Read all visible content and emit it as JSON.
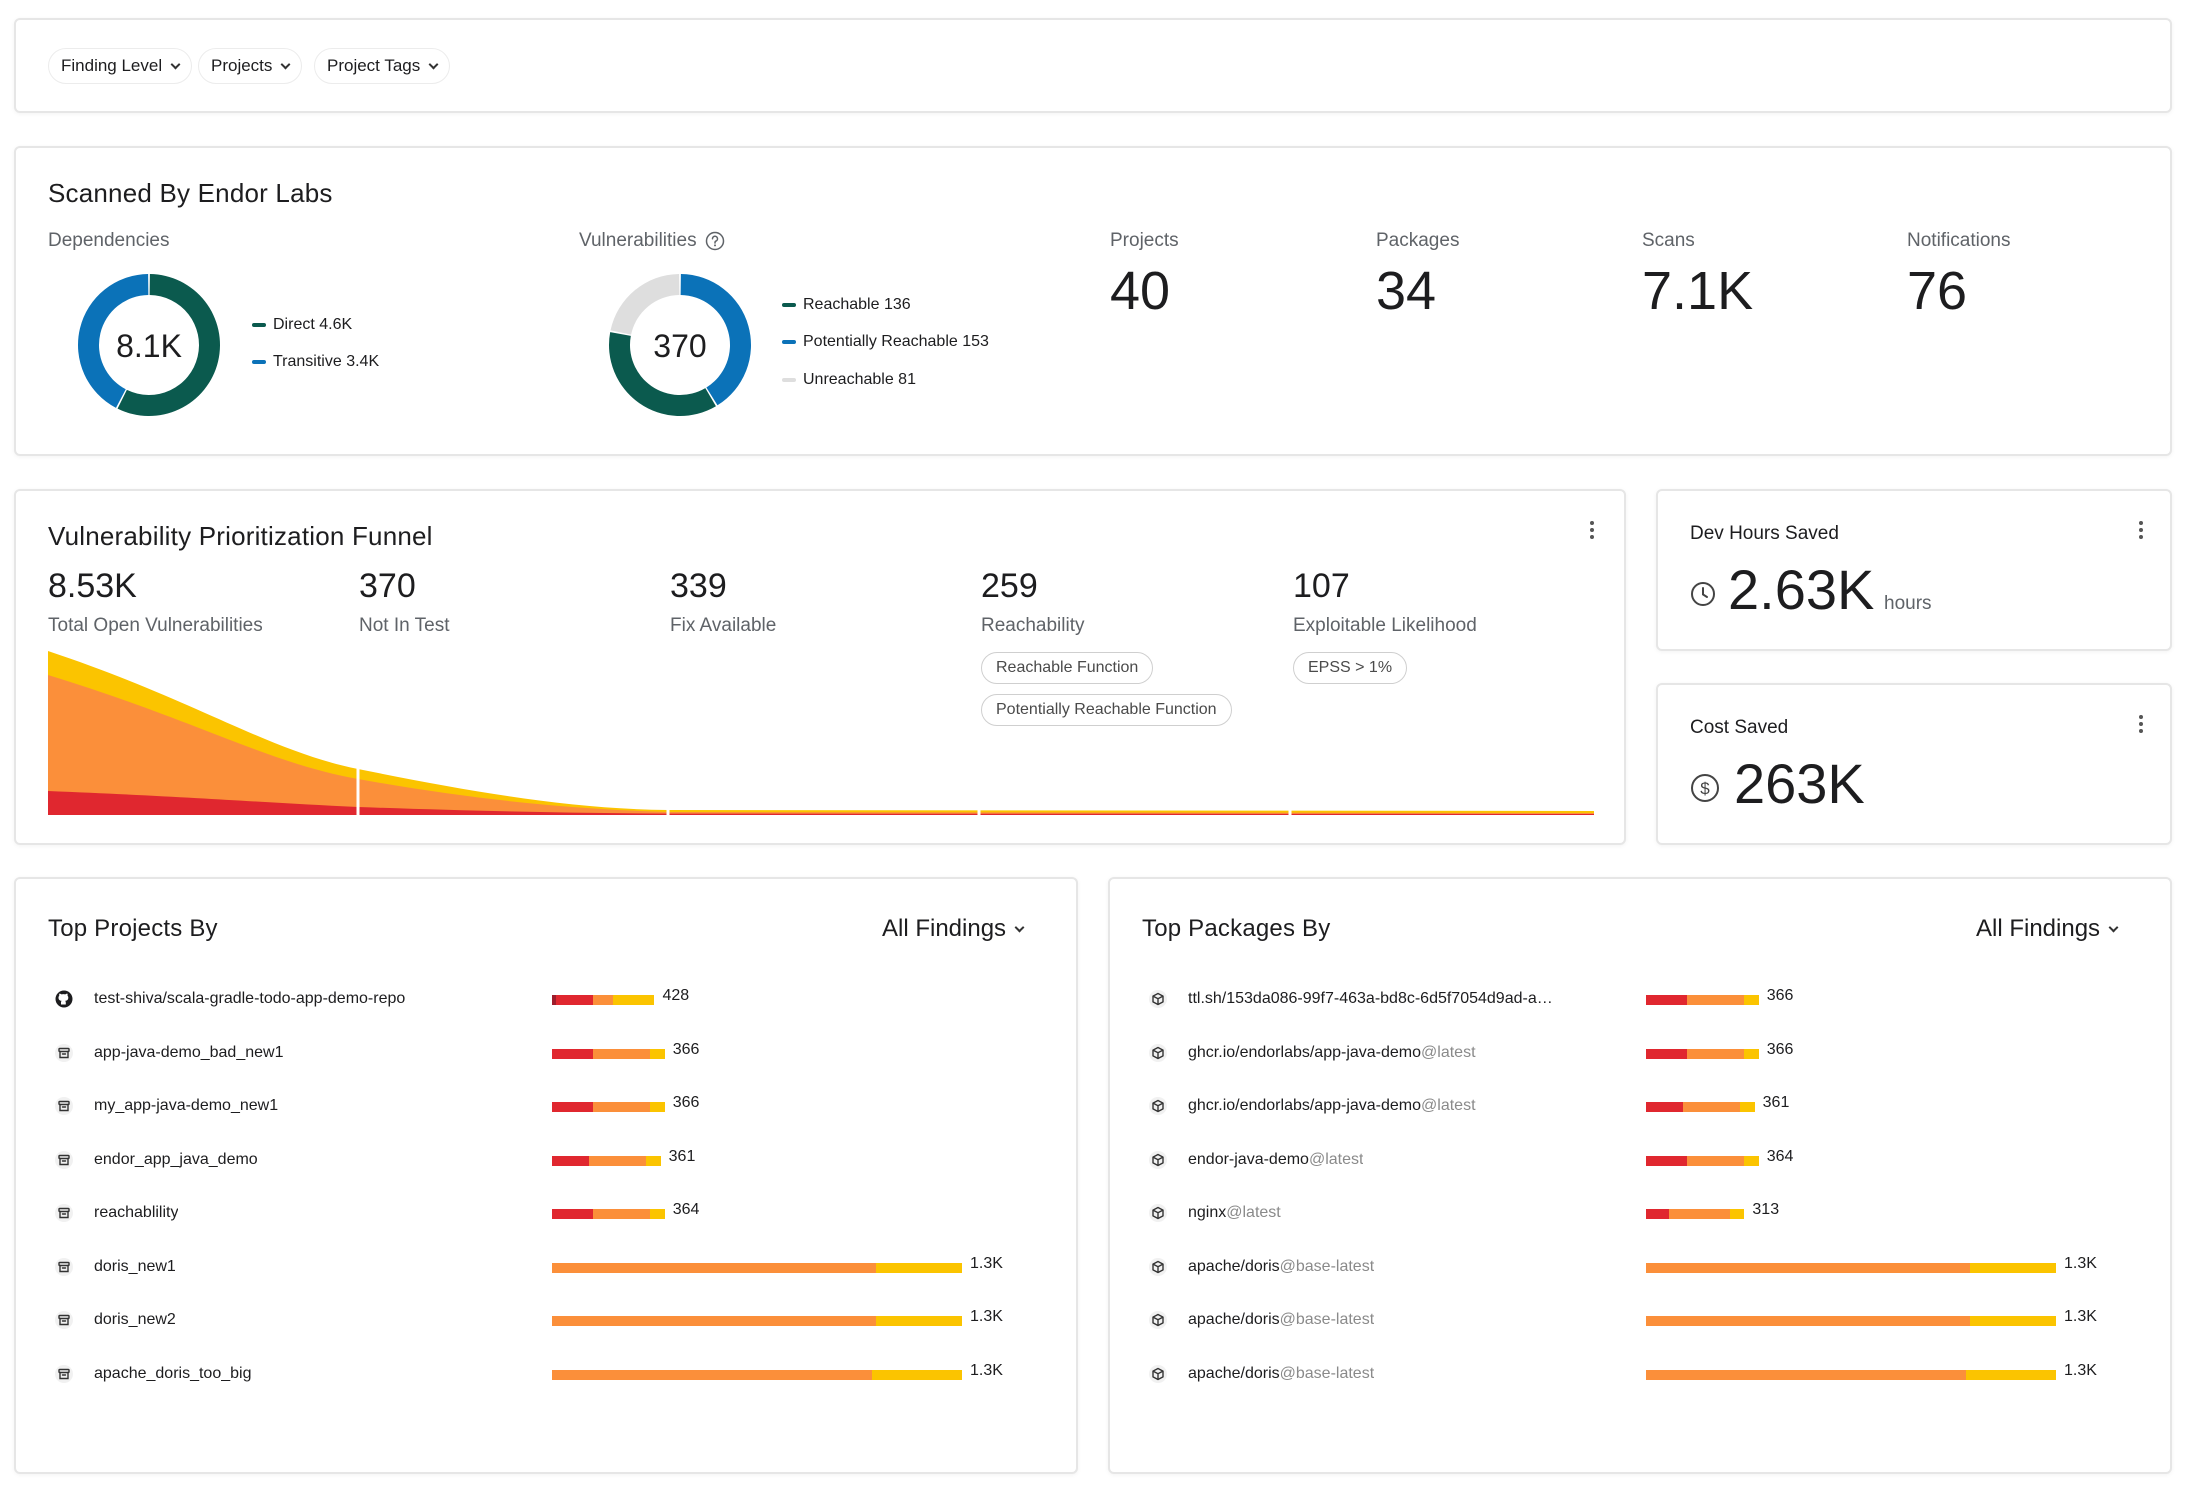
{
  "filters": [
    "Finding Level",
    "Projects",
    "Project Tags"
  ],
  "scanned": {
    "title": "Scanned By Endor Labs",
    "dependencies": {
      "label": "Dependencies",
      "total": "8.1K",
      "legend": [
        {
          "label": "Direct 4.6K",
          "value": 4.6,
          "color": "#0b5a4e"
        },
        {
          "label": "Transitive 3.4K",
          "value": 3.4,
          "color": "#0b72b8"
        }
      ]
    },
    "vulnerabilities": {
      "label": "Vulnerabilities",
      "total": "370",
      "legend": [
        {
          "label": "Reachable 136",
          "value": 136,
          "color": "#0b5a4e"
        },
        {
          "label": "Potentially Reachable 153",
          "value": 153,
          "color": "#0b72b8"
        },
        {
          "label": "Unreachable 81",
          "value": 81,
          "color": "#dedede"
        }
      ]
    },
    "stats": [
      {
        "label": "Projects",
        "value": "40"
      },
      {
        "label": "Packages",
        "value": "34"
      },
      {
        "label": "Scans",
        "value": "7.1K"
      },
      {
        "label": "Notifications",
        "value": "76"
      }
    ]
  },
  "funnel": {
    "title": "Vulnerability Prioritization Funnel",
    "stages": [
      {
        "value": "8.53K",
        "label": "Total Open Vulnerabilities"
      },
      {
        "value": "370",
        "label": "Not In Test"
      },
      {
        "value": "339",
        "label": "Fix Available"
      },
      {
        "value": "259",
        "label": "Reachability"
      },
      {
        "value": "107",
        "label": "Exploitable Likelihood"
      }
    ],
    "pills": {
      "reachable_function": "Reachable Function",
      "potentially_reachable_function": "Potentially Reachable Function",
      "epss": "EPSS > 1%"
    },
    "colors": {
      "critical": "#e0272f",
      "high": "#fb8f3a",
      "medium": "#fbc400"
    }
  },
  "dev_hours": {
    "title": "Dev Hours Saved",
    "value": "2.63K",
    "unit": "hours"
  },
  "cost_saved": {
    "title": "Cost Saved",
    "value": "263K"
  },
  "top_projects": {
    "title": "Top Projects By",
    "selector": "All Findings",
    "rows": [
      {
        "name": "test-shiva/scala-gradle-todo-app-demo-repo",
        "icon": "github-icon",
        "value": "428",
        "segments": [
          0.01,
          0.09,
          0.05,
          0.1
        ]
      },
      {
        "name": "app-java-demo_bad_new1",
        "icon": "package-box-icon",
        "value": "366",
        "segments": [
          0,
          0.1,
          0.14,
          0.035
        ]
      },
      {
        "name": "my_app-java-demo_new1",
        "icon": "package-box-icon",
        "value": "366",
        "segments": [
          0,
          0.1,
          0.14,
          0.035
        ]
      },
      {
        "name": "endor_app_java_demo",
        "icon": "package-box-icon",
        "value": "361",
        "segments": [
          0,
          0.09,
          0.14,
          0.035
        ]
      },
      {
        "name": "reachablility",
        "icon": "package-box-icon",
        "value": "364",
        "segments": [
          0,
          0.1,
          0.14,
          0.035
        ]
      },
      {
        "name": "doris_new1",
        "icon": "package-box-icon",
        "value": "1.3K",
        "segments": [
          0,
          0,
          0.79,
          0.21
        ]
      },
      {
        "name": "doris_new2",
        "icon": "package-box-icon",
        "value": "1.3K",
        "segments": [
          0,
          0,
          0.79,
          0.21
        ]
      },
      {
        "name": "apache_doris_too_big",
        "icon": "package-box-icon",
        "value": "1.3K",
        "segments": [
          0,
          0,
          0.78,
          0.22
        ]
      }
    ]
  },
  "top_packages": {
    "title": "Top Packages By",
    "selector": "All Findings",
    "rows": [
      {
        "name": "ttl.sh/153da086-99f7-463a-bd8c-6d5f7054d9ad-a…",
        "suffix": "",
        "icon": "cube-icon",
        "value": "366",
        "segments": [
          0,
          0.1,
          0.14,
          0.035
        ]
      },
      {
        "name": "ghcr.io/endorlabs/app-java-demo",
        "suffix": "@latest",
        "icon": "cube-icon",
        "value": "366",
        "segments": [
          0,
          0.1,
          0.14,
          0.035
        ]
      },
      {
        "name": "ghcr.io/endorlabs/app-java-demo",
        "suffix": "@latest",
        "icon": "cube-icon",
        "value": "361",
        "segments": [
          0,
          0.09,
          0.14,
          0.035
        ]
      },
      {
        "name": "endor-java-demo",
        "suffix": "@latest",
        "icon": "cube-icon",
        "value": "364",
        "segments": [
          0,
          0.1,
          0.14,
          0.035
        ]
      },
      {
        "name": "nginx",
        "suffix": "@latest",
        "icon": "cube-icon",
        "value": "313",
        "segments": [
          0,
          0.055,
          0.15,
          0.035
        ]
      },
      {
        "name": "apache/doris",
        "suffix": "@base-latest",
        "icon": "cube-icon",
        "value": "1.3K",
        "segments": [
          0,
          0,
          0.79,
          0.21
        ]
      },
      {
        "name": "apache/doris",
        "suffix": "@base-latest",
        "icon": "cube-icon",
        "value": "1.3K",
        "segments": [
          0,
          0,
          0.79,
          0.21
        ]
      },
      {
        "name": "apache/doris",
        "suffix": "@base-latest",
        "icon": "cube-icon",
        "value": "1.3K",
        "segments": [
          0,
          0,
          0.78,
          0.22
        ]
      }
    ]
  },
  "bar_colors": [
    "#9e1c2c",
    "#e0272f",
    "#fb8f3a",
    "#fbc400"
  ]
}
